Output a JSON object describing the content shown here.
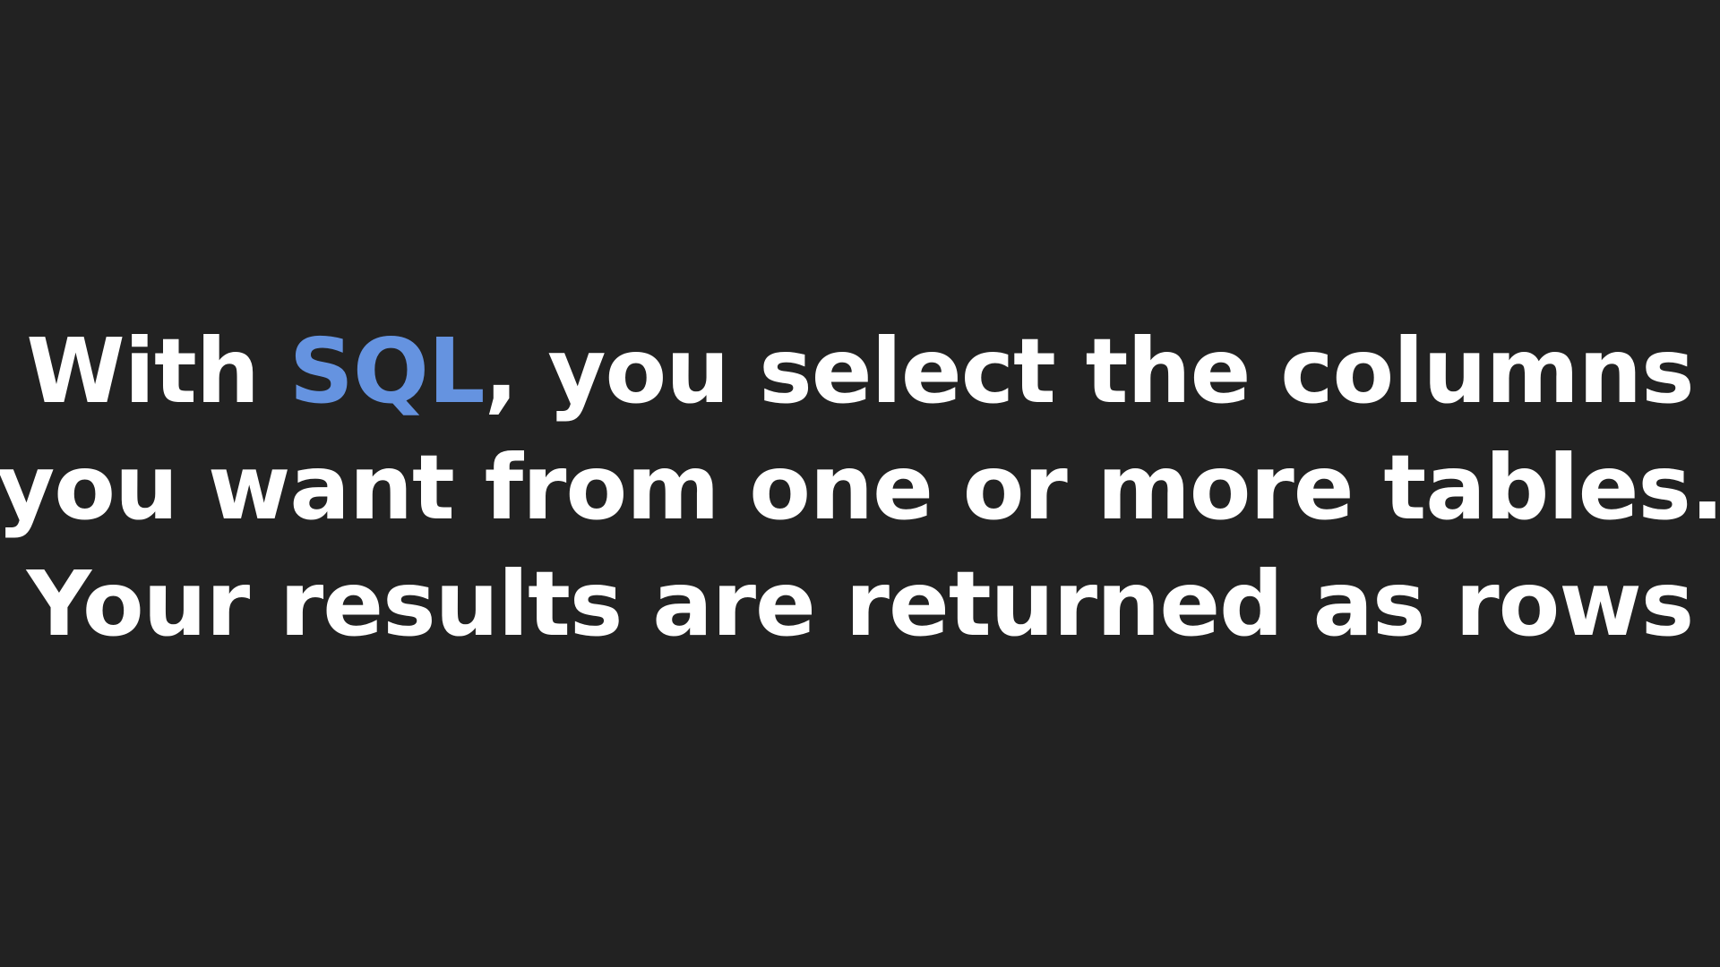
{
  "slide": {
    "line1": {
      "before": "With ",
      "highlight": "SQL",
      "after": ", you select the columns"
    },
    "line2": "you want from one or more tables.",
    "line3": "Your results are returned as rows"
  },
  "colors": {
    "background": "#222222",
    "text": "#ffffff",
    "highlight": "#6593e0"
  }
}
